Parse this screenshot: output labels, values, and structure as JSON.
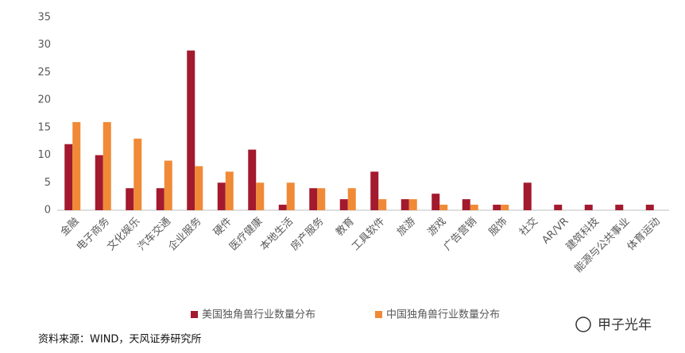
{
  "chart_data": {
    "type": "bar",
    "categories": [
      "金融",
      "电子商务",
      "文化娱乐",
      "汽车交通",
      "企业服务",
      "硬件",
      "医疗健康",
      "本地生活",
      "房产服务",
      "教育",
      "工具软件",
      "旅游",
      "游戏",
      "广告营销",
      "服饰",
      "社交",
      "AR/VR",
      "建筑科技",
      "能源与公共事业",
      "体育运动"
    ],
    "series": [
      {
        "name": "美国独角兽行业数量分布",
        "color": "#a3192e",
        "values": [
          12,
          10,
          4,
          4,
          29,
          5,
          11,
          1,
          4,
          2,
          7,
          2,
          3,
          2,
          1,
          5,
          1,
          1,
          1,
          1
        ]
      },
      {
        "name": "中国独角兽行业数量分布",
        "color": "#f08a36",
        "values": [
          16,
          16,
          13,
          9,
          8,
          7,
          5,
          5,
          4,
          4,
          2,
          2,
          1,
          1,
          1,
          0,
          0,
          0,
          0,
          0
        ]
      }
    ],
    "ylim": [
      0,
      35
    ],
    "yticks": [
      0,
      5,
      10,
      15,
      20,
      25,
      30,
      35
    ],
    "grid": false,
    "legend": "bottom",
    "source": "资料来源：WIND，天风证券研究所",
    "watermark": "甲子光年"
  }
}
